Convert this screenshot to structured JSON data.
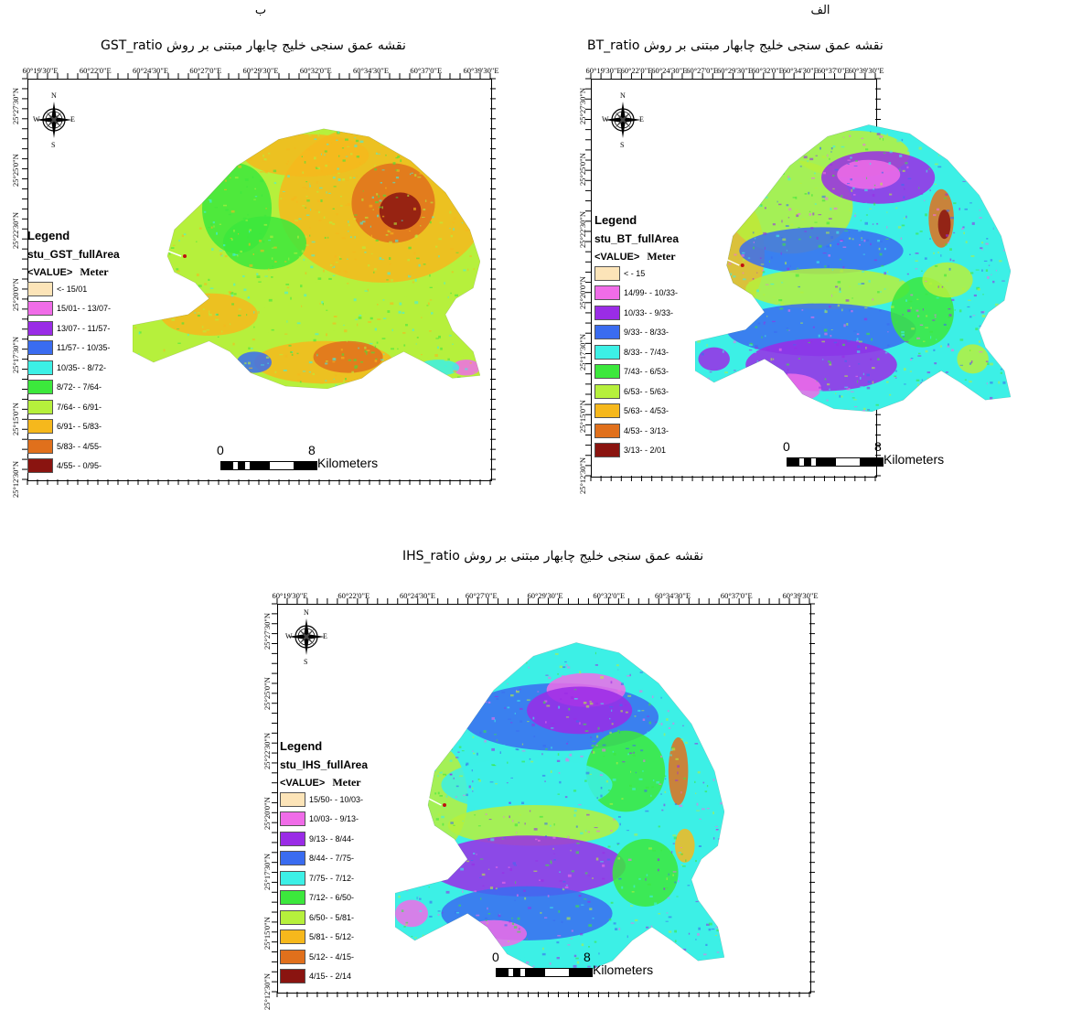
{
  "panels": [
    {
      "id": "bt",
      "letter": "الف",
      "title": "نقشه عمق سنجی خلیج چابهار مبتنی بر روش BT_ratio",
      "lon_labels": [
        "60°19'30\"E",
        "60°22'0\"E",
        "60°24'30\"E",
        "60°27'0\"E",
        "60°29'30\"E",
        "60°32'0\"E",
        "60°34'30\"E",
        "60°37'0\"E",
        "60°39'30\"E"
      ],
      "lat_labels": [
        "25°27'30\"N",
        "25°25'0\"N",
        "25°22'30\"N",
        "25°20'0\"N",
        "25°17'30\"N",
        "25°15'0\"N",
        "25°12'30\"N"
      ],
      "compass": {
        "n": "N",
        "s": "S",
        "w": "W",
        "e": "E"
      },
      "legend": {
        "title": "Legend",
        "layer": "stu_BT_fullArea",
        "field": "<VALUE>",
        "unit": "Meter",
        "items": [
          {
            "label": "< - 15",
            "color": "#fce4b8"
          },
          {
            "label": "14/99- - 10/33-",
            "color": "#f06ce8"
          },
          {
            "label": "10/33- - 9/33-",
            "color": "#9a2ce6"
          },
          {
            "label": "9/33- - 8/33-",
            "color": "#3a6cf0"
          },
          {
            "label": "8/33- - 7/43-",
            "color": "#3cf0e6"
          },
          {
            "label": "7/43- - 6/53-",
            "color": "#3ce83c"
          },
          {
            "label": "6/53- - 5/63-",
            "color": "#b6f03c"
          },
          {
            "label": "5/63- - 4/53-",
            "color": "#f6b81c"
          },
          {
            "label": "4/53- - 3/13-",
            "color": "#e0701c"
          },
          {
            "label": "3/13- - 2/01",
            "color": "#8a1410"
          }
        ]
      },
      "scale": {
        "zero": "0",
        "eight": "8",
        "unit": "Kilometers"
      }
    },
    {
      "id": "gst",
      "letter": "ب",
      "title": "نقشه عمق سنجی خلیج چابهار مبتنی بر روش GST_ratio",
      "lon_labels": [
        "60°19'30\"E",
        "60°22'0\"E",
        "60°24'30\"E",
        "60°27'0\"E",
        "60°29'30\"E",
        "60°32'0\"E",
        "60°34'30\"E",
        "60°37'0\"E",
        "60°39'30\"E"
      ],
      "lat_labels": [
        "25°27'30\"N",
        "25°25'0\"N",
        "25°22'30\"N",
        "25°20'0\"N",
        "25°17'30\"N",
        "25°15'0\"N",
        "25°12'30\"N"
      ],
      "compass": {
        "n": "N",
        "s": "S",
        "w": "W",
        "e": "E"
      },
      "legend": {
        "title": "Legend",
        "layer": "stu_GST_fullArea",
        "field": "<VALUE>",
        "unit": "Meter",
        "items": [
          {
            "label": "<- 15/01",
            "color": "#fce4b8"
          },
          {
            "label": "15/01- - 13/07-",
            "color": "#f06ce8"
          },
          {
            "label": "13/07- - 11/57-",
            "color": "#9a2ce6"
          },
          {
            "label": "11/57- - 10/35-",
            "color": "#3a6cf0"
          },
          {
            "label": "10/35- - 8/72-",
            "color": "#3cf0e6"
          },
          {
            "label": "8/72- - 7/64-",
            "color": "#3ce83c"
          },
          {
            "label": "7/64- - 6/91-",
            "color": "#b6f03c"
          },
          {
            "label": "6/91- - 5/83-",
            "color": "#f6b81c"
          },
          {
            "label": "5/83- - 4/55-",
            "color": "#e0701c"
          },
          {
            "label": "4/55- - 0/95-",
            "color": "#8a1410"
          }
        ]
      },
      "scale": {
        "zero": "0",
        "eight": "8",
        "unit": "Kilometers"
      }
    },
    {
      "id": "ihs",
      "letter": "",
      "title": "نقشه عمق سنجی خلیج چابهار مبتنی بر روش IHS_ratio",
      "lon_labels": [
        "60°19'30\"E",
        "60°22'0\"E",
        "60°24'30\"E",
        "60°27'0\"E",
        "60°29'30\"E",
        "60°32'0\"E",
        "60°34'30\"E",
        "60°37'0\"E",
        "60°39'30\"E"
      ],
      "lat_labels": [
        "25°27'30\"N",
        "25°25'0\"N",
        "25°22'30\"N",
        "25°20'0\"N",
        "25°17'30\"N",
        "25°15'0\"N",
        "25°12'30\"N"
      ],
      "compass": {
        "n": "N",
        "s": "S",
        "w": "W",
        "e": "E"
      },
      "legend": {
        "title": "Legend",
        "layer": "stu_IHS_fullArea",
        "field": "<VALUE>",
        "unit": "Meter",
        "items": [
          {
            "label": "15/50- - 10/03-",
            "color": "#fce4b8"
          },
          {
            "label": "10/03- - 9/13-",
            "color": "#f06ce8"
          },
          {
            "label": "9/13- - 8/44-",
            "color": "#9a2ce6"
          },
          {
            "label": "8/44- - 7/75-",
            "color": "#3a6cf0"
          },
          {
            "label": "7/75- - 7/12-",
            "color": "#3cf0e6"
          },
          {
            "label": "7/12- - 6/50-",
            "color": "#3ce83c"
          },
          {
            "label": "6/50- - 5/81-",
            "color": "#b6f03c"
          },
          {
            "label": "5/81- - 5/12-",
            "color": "#f6b81c"
          },
          {
            "label": "5/12- - 4/15-",
            "color": "#e0701c"
          },
          {
            "label": "4/15- - 2/14",
            "color": "#8a1410"
          }
        ]
      },
      "scale": {
        "zero": "0",
        "eight": "8",
        "unit": "Kilometers"
      }
    }
  ]
}
